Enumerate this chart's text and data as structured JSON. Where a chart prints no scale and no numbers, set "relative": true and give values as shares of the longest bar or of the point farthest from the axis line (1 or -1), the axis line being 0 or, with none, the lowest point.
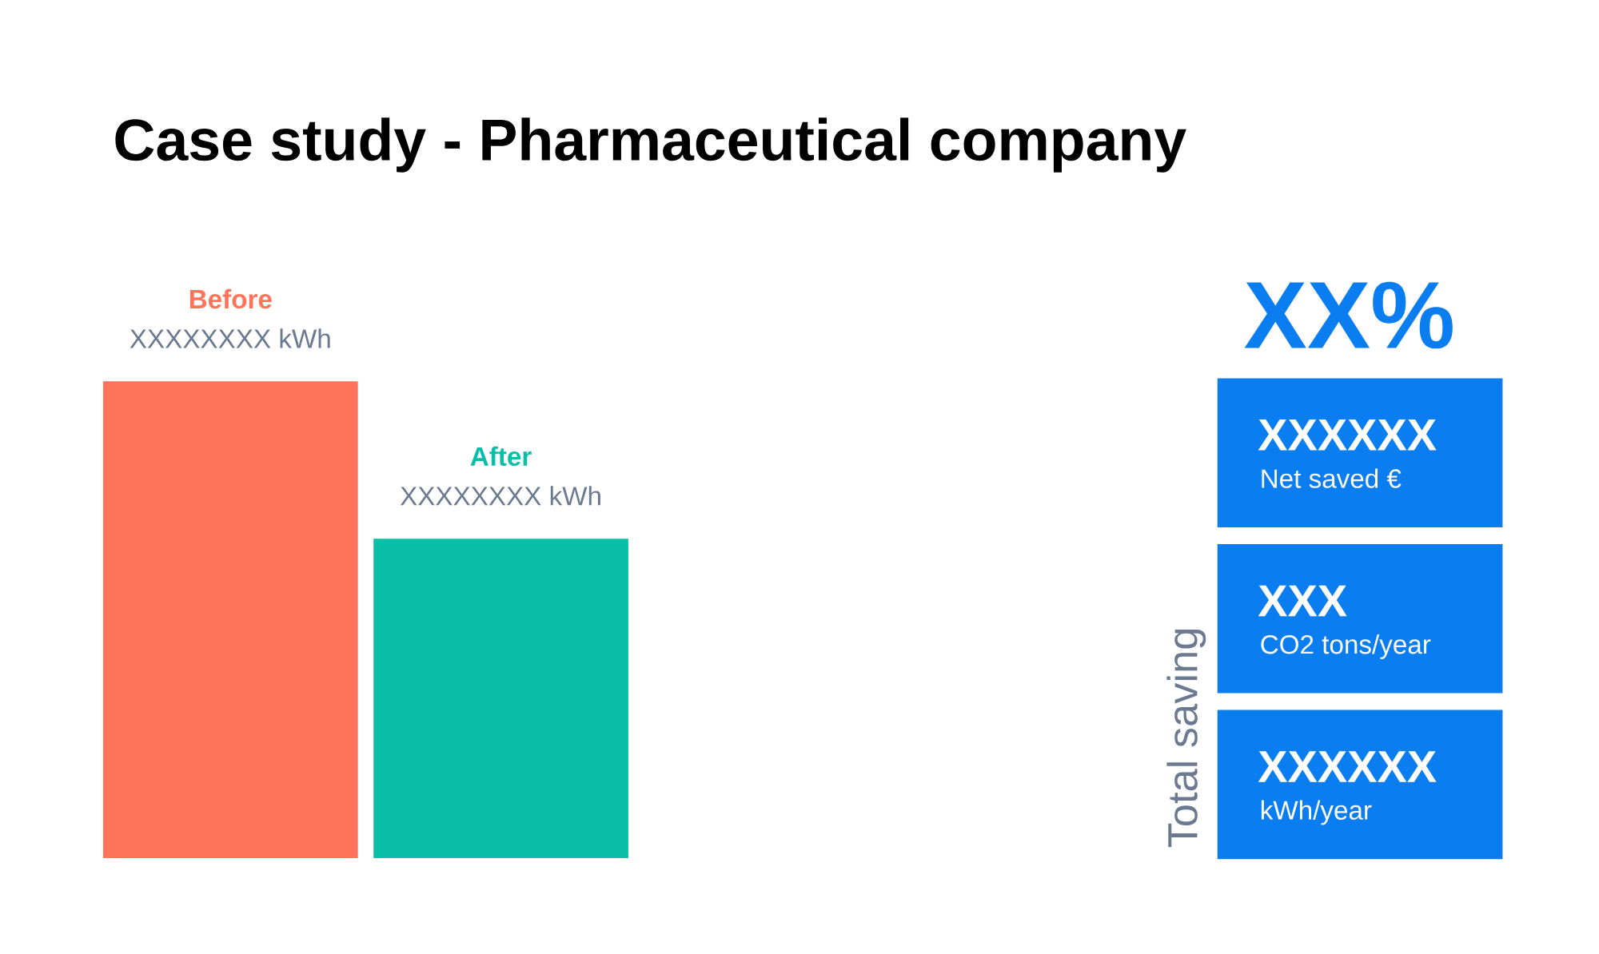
{
  "chart_data": [
    {
      "type": "bar",
      "title": "Case study - Pharmaceutical company",
      "relative": true,
      "categories": [
        null,
        null
      ],
      "values": [
        1,
        0.67
      ],
      "colors": [
        "#ff735a",
        "#0abfa8"
      ],
      "annotations": [
        "Before",
        "XXXXXXXX kWh",
        "After",
        "XXXXXXXX kWh"
      ]
    },
    {
      "type": "other",
      "title": "XX%",
      "ylabel": "Total saving",
      "color": "#0a7ef0",
      "annotations": [
        "XXXXXX",
        "Net saved €",
        "XXX",
        "CO2 tons/year",
        "XXXXXX",
        "kWh/year"
      ]
    }
  ]
}
